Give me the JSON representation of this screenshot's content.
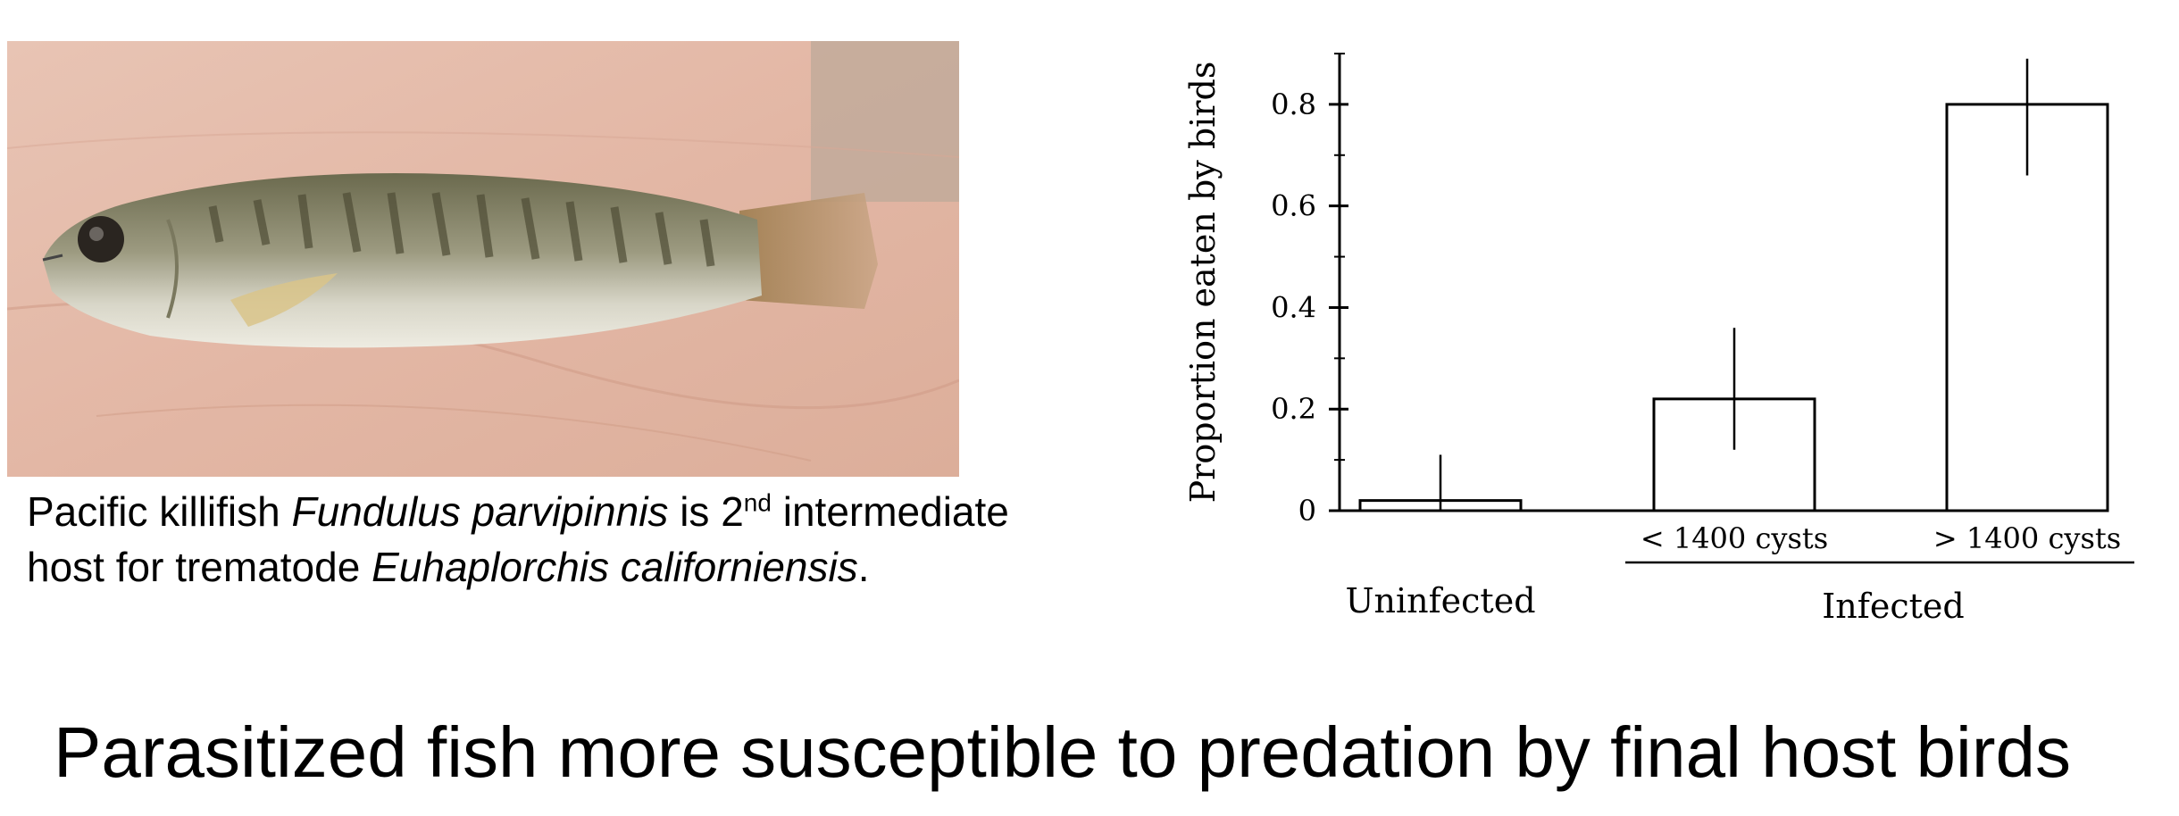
{
  "caption": {
    "part1": "Pacific killifish ",
    "species": "Fundulus parvipinnis",
    "part2": " is 2",
    "superscript": "nd",
    "part3": " intermediate",
    "line2_part1": "host for trematode ",
    "parasite": "Euhaplorchis californiensis",
    "line2_part2": "."
  },
  "headline": "Parasitized fish more susceptible to predation by final host birds",
  "photo": {
    "subject": "killifish-on-hand"
  },
  "chart_data": {
    "type": "bar",
    "categories": [
      "",
      "< 1400 cysts",
      "> 1400 cysts"
    ],
    "values": [
      0.02,
      0.22,
      0.8
    ],
    "error_low": [
      0.0,
      0.12,
      0.66
    ],
    "error_high": [
      0.11,
      0.36,
      0.89
    ],
    "group_labels": [
      "Uninfected",
      "Infected"
    ],
    "ylabel": "Proportion eaten by birds",
    "xlabel": "",
    "ylim": [
      0,
      0.9
    ],
    "yticks": [
      0,
      0.2,
      0.4,
      0.6,
      0.8
    ],
    "ytick_labels": [
      "0",
      "0.2",
      "0.4",
      "0.6",
      "0.8"
    ],
    "grid": false
  }
}
